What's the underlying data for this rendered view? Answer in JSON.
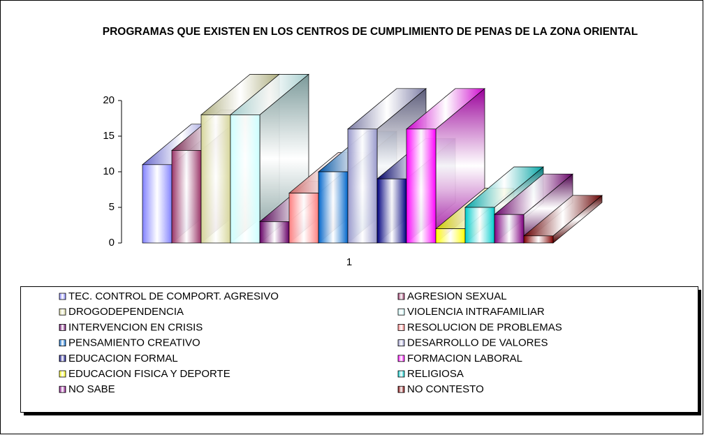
{
  "chart_data": {
    "type": "bar3d",
    "title": "PROGRAMAS QUE EXISTEN EN LOS CENTROS DE CUMPLIMIENTO DE PENAS DE LA ZONA ORIENTAL",
    "categories": [
      "1"
    ],
    "ylim": [
      0,
      20
    ],
    "yticks": [
      0,
      5,
      10,
      15,
      20
    ],
    "legend": "bottom",
    "series": [
      {
        "name": "TEC. CONTROL DE COMPORT. AGRESIVO",
        "color": "#8080ff",
        "values": [
          11
        ]
      },
      {
        "name": "AGRESION SEXUAL",
        "color": "#993366",
        "values": [
          13
        ]
      },
      {
        "name": "DROGODEPENDENCIA",
        "color": "#d6d69a",
        "values": [
          18
        ]
      },
      {
        "name": "VIOLENCIA INTRAFAMILIAR",
        "color": "#ccffff",
        "values": [
          18
        ]
      },
      {
        "name": "INTERVENCION EN CRISIS",
        "color": "#660066",
        "values": [
          3
        ]
      },
      {
        "name": "RESOLUCION DE PROBLEMAS",
        "color": "#ff8080",
        "values": [
          7
        ]
      },
      {
        "name": "PENSAMIENTO CREATIVO",
        "color": "#0066cc",
        "values": [
          10
        ]
      },
      {
        "name": "DESARROLLO DE VALORES",
        "color": "#9999cc",
        "values": [
          16
        ]
      },
      {
        "name": "EDUCACION FORMAL",
        "color": "#000080",
        "values": [
          9
        ]
      },
      {
        "name": "FORMACION LABORAL",
        "color": "#ff00ff",
        "values": [
          16
        ]
      },
      {
        "name": "EDUCACION FISICA Y DEPORTE",
        "color": "#ffff00",
        "values": [
          2
        ]
      },
      {
        "name": "RELIGIOSA",
        "color": "#00cccc",
        "values": [
          5
        ]
      },
      {
        "name": "NO SABE",
        "color": "#800080",
        "values": [
          4
        ]
      },
      {
        "name": "NO CONTESTO",
        "color": "#800000",
        "values": [
          1
        ]
      }
    ]
  }
}
